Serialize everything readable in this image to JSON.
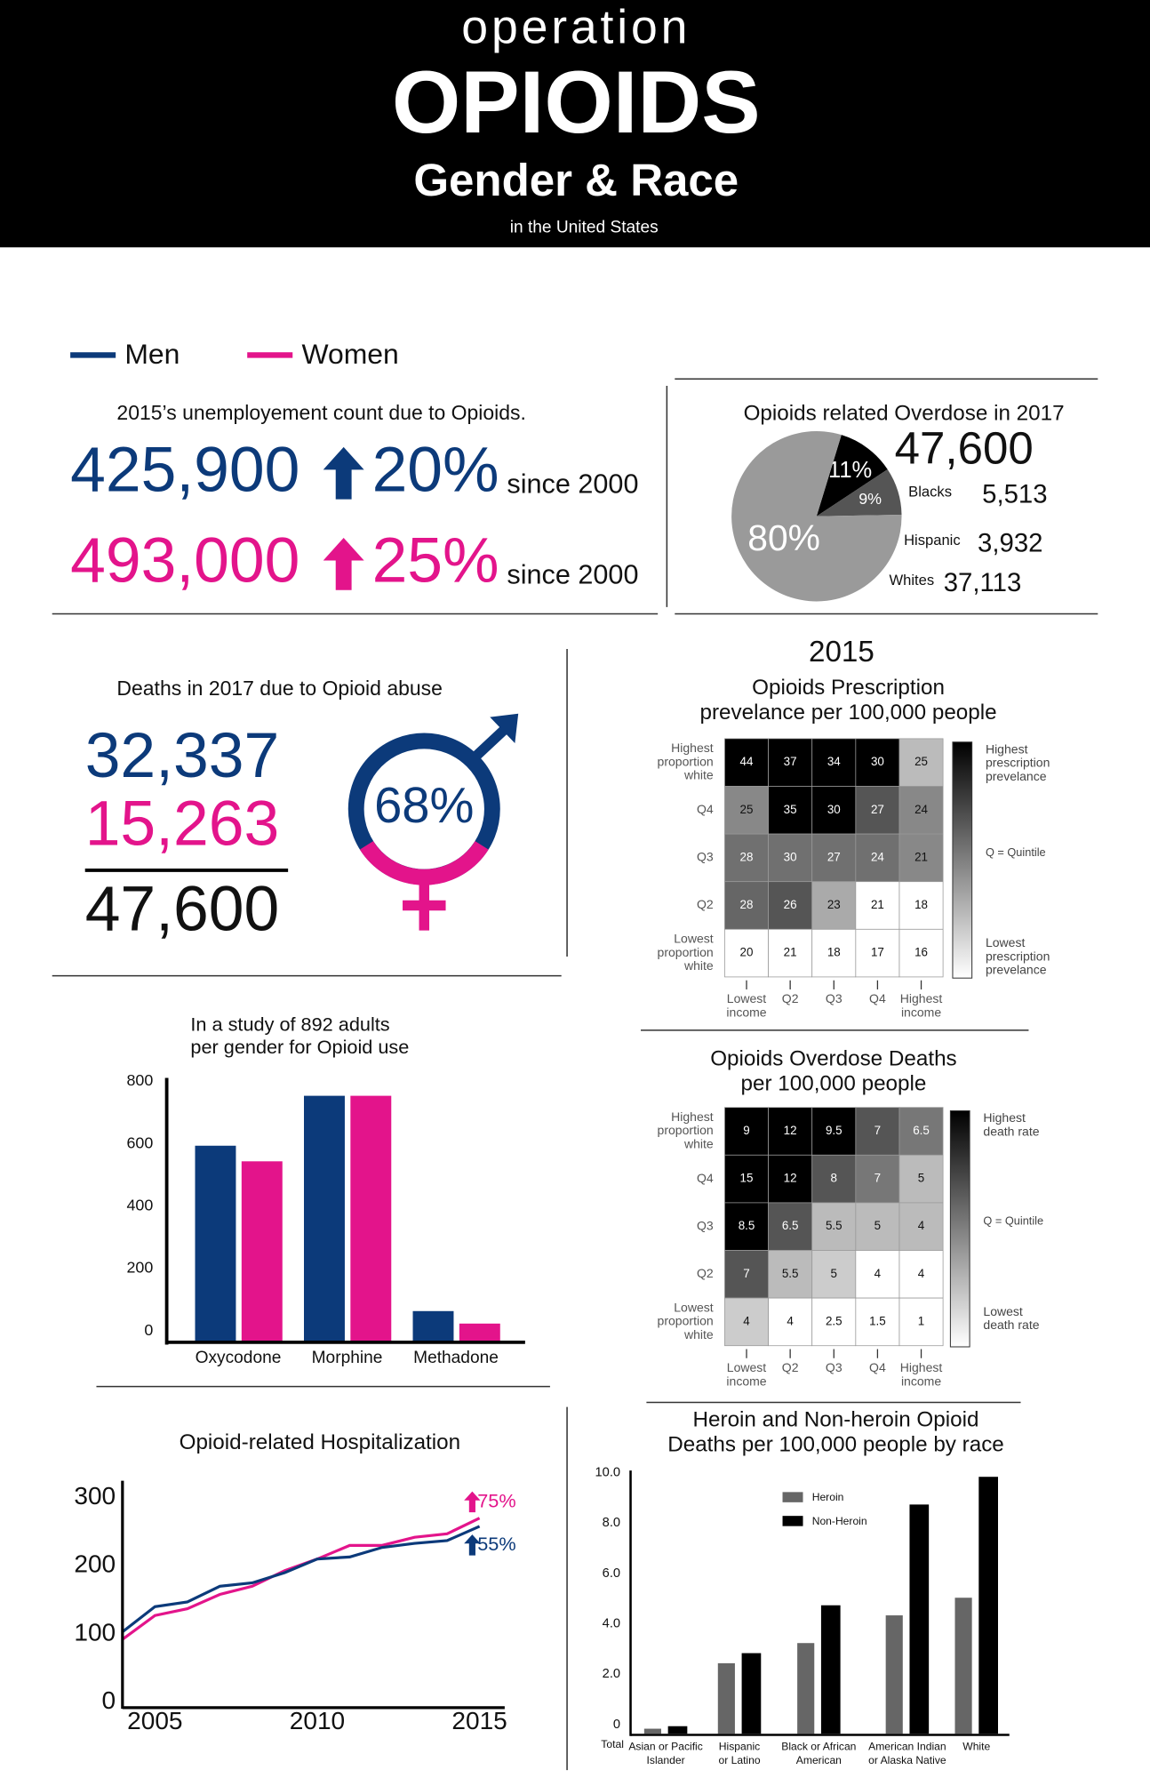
{
  "header": {
    "line1": "operation",
    "line2": "OPIOIDS",
    "line3": "Gender & Race",
    "line4": "in the United States"
  },
  "legend": [
    {
      "name": "Men",
      "color": "#0c3a7a"
    },
    {
      "name": "Women",
      "color": "#e3148b"
    }
  ],
  "unemployment": {
    "title": "2015’s unemployement count due to Opioids.",
    "rows": [
      {
        "count": "425,900",
        "change": "20%",
        "since": "since 2000"
      },
      {
        "count": "493,000",
        "change": "25%",
        "since": "since 2000"
      }
    ]
  },
  "deaths": {
    "title": "Deaths in 2017 due to Opioid abuse",
    "men": "32,337",
    "women": "15,263",
    "total": "47,600",
    "share": "68%"
  },
  "chart_data": [
    {
      "type": "pie",
      "title": "Opioids related Overdose in 2017",
      "total": "47,600",
      "categories": [
        "Blacks",
        "Hispanic",
        "Whites"
      ],
      "values": [
        11,
        9,
        80
      ],
      "value_labels": [
        "11%",
        "9%",
        "80%"
      ],
      "counts": [
        "5,513",
        "3,932",
        "37,113"
      ],
      "colors": [
        "#000000",
        "#555555",
        "#9a9a9a"
      ]
    },
    {
      "type": "heatmap",
      "year": "2015",
      "title_lines": [
        "Opioids Prescription",
        "prevelance per 100,000 people"
      ],
      "row_labels": [
        [
          "Highest",
          "proportion",
          "white"
        ],
        [
          "Q4"
        ],
        [
          "Q3"
        ],
        [
          "Q2"
        ],
        [
          "Lowest",
          "proportion",
          "white"
        ]
      ],
      "column_labels": [
        [
          "Lowest",
          "income"
        ],
        [
          "Q2"
        ],
        [
          "Q3"
        ],
        [
          "Q4"
        ],
        [
          "Highest",
          "income"
        ]
      ],
      "values": [
        [
          44,
          37,
          34,
          30,
          25
        ],
        [
          25,
          35,
          30,
          27,
          24
        ],
        [
          28,
          30,
          27,
          24,
          21
        ],
        [
          28,
          26,
          23,
          21,
          18
        ],
        [
          20,
          21,
          18,
          17,
          16
        ]
      ],
      "colors": [
        [
          "#000000",
          "#000000",
          "#000000",
          "#000000",
          "#bbbbbb"
        ],
        [
          "#888888",
          "#000000",
          "#000000",
          "#555555",
          "#888888"
        ],
        [
          "#707070",
          "#707070",
          "#707070",
          "#707070",
          "#888888"
        ],
        [
          "#666666",
          "#555555",
          "#aaaaaa",
          "#ffffff",
          "#ffffff"
        ],
        [
          "#ffffff",
          "#ffffff",
          "#ffffff",
          "#ffffff",
          "#ffffff"
        ]
      ],
      "legend_labels": {
        "high": [
          "Highest",
          "prescription",
          "prevelance"
        ],
        "mid": [
          "Q = Quintile"
        ],
        "low": [
          "Lowest",
          "prescription",
          "prevelance"
        ]
      }
    },
    {
      "type": "heatmap",
      "title_lines": [
        "Opioids Overdose Deaths",
        "per 100,000 people"
      ],
      "row_labels": [
        [
          "Highest",
          "proportion",
          "white"
        ],
        [
          "Q4"
        ],
        [
          "Q3"
        ],
        [
          "Q2"
        ],
        [
          "Lowest",
          "proportion",
          "white"
        ]
      ],
      "column_labels": [
        [
          "Lowest",
          "income"
        ],
        [
          "Q2"
        ],
        [
          "Q3"
        ],
        [
          "Q4"
        ],
        [
          "Highest",
          "income"
        ]
      ],
      "values": [
        [
          9,
          12,
          9.5,
          7,
          6.5
        ],
        [
          15,
          12,
          8,
          7,
          5
        ],
        [
          8.5,
          6.5,
          5.5,
          5,
          4
        ],
        [
          7,
          5.5,
          5,
          4,
          4
        ],
        [
          4,
          4,
          2.5,
          1.5,
          1
        ]
      ],
      "colors": [
        [
          "#000000",
          "#000000",
          "#000000",
          "#555555",
          "#777777"
        ],
        [
          "#000000",
          "#000000",
          "#555555",
          "#777777",
          "#bbbbbb"
        ],
        [
          "#000000",
          "#555555",
          "#bbbbbb",
          "#bbbbbb",
          "#bbbbbb"
        ],
        [
          "#555555",
          "#bbbbbb",
          "#cccccc",
          "#ffffff",
          "#ffffff"
        ],
        [
          "#cccccc",
          "#ffffff",
          "#ffffff",
          "#ffffff",
          "#ffffff"
        ]
      ],
      "legend_labels": {
        "high": [
          "Highest",
          "death rate"
        ],
        "mid": [
          "Q = Quintile"
        ],
        "low": [
          "Lowest",
          "death rate"
        ]
      }
    },
    {
      "type": "bar",
      "title_lines": [
        "In a study of 892 adults",
        "per gender for Opioid use"
      ],
      "categories": [
        "Oxycodone",
        "Morphine",
        "Methadone"
      ],
      "series": [
        {
          "color": "#0c3a7a",
          "values": [
            630,
            790,
            100
          ]
        },
        {
          "color": "#e3148b",
          "values": [
            580,
            790,
            60
          ]
        }
      ],
      "ylim": [
        0,
        800
      ],
      "yticks": [
        0,
        200,
        400,
        600,
        800
      ]
    },
    {
      "type": "line",
      "title": "Opioid-related Hospitalization",
      "x": [
        2004,
        2005,
        2006,
        2007,
        2008,
        2009,
        2010,
        2011,
        2012,
        2013,
        2014,
        2015
      ],
      "series": [
        {
          "color": "#e3148b",
          "values": [
            92,
            127,
            137,
            158,
            170,
            193,
            210,
            230,
            230,
            242,
            247,
            270
          ]
        },
        {
          "color": "#0c3a7a",
          "values": [
            103,
            140,
            147,
            170,
            175,
            190,
            210,
            213,
            227,
            233,
            237,
            258
          ]
        }
      ],
      "xlim": [
        2004,
        2015.6
      ],
      "xticks": [
        2005,
        2010,
        2015
      ],
      "ylim": [
        0,
        300
      ],
      "yticks": [
        0,
        100,
        200,
        300
      ],
      "annotations": [
        {
          "text": "75%",
          "color": "#e3148b"
        },
        {
          "text": "55%",
          "color": "#0c3a7a"
        }
      ]
    },
    {
      "type": "grouped-bar",
      "title_lines": [
        "Heroin and Non-heroin Opioid",
        "Deaths per 100,000 people by race"
      ],
      "x_label": "Total",
      "categories": [
        [
          "Asian or Pacific",
          "Islander"
        ],
        [
          "Hispanic",
          "or Latino"
        ],
        [
          "Black or African",
          "American"
        ],
        [
          "American Indian",
          "or Alaska Native"
        ],
        [
          "White"
        ]
      ],
      "series": [
        {
          "name": "Heroin",
          "color": "#666666",
          "values": [
            0.2,
            2.8,
            3.6,
            4.7,
            5.4
          ]
        },
        {
          "name": "Non-Heroin",
          "color": "#000000",
          "values": [
            0.3,
            3.2,
            5.1,
            9.1,
            10.2
          ]
        }
      ],
      "ylim": [
        0,
        10.4
      ],
      "yticks": [
        0,
        {
          "value": 2,
          "label": "2.0"
        },
        {
          "value": 4,
          "label": "4.0"
        },
        {
          "value": 6,
          "label": "6.0"
        },
        {
          "value": 8,
          "label": "8.0"
        },
        {
          "value": 10,
          "label": "10.0"
        }
      ]
    }
  ]
}
